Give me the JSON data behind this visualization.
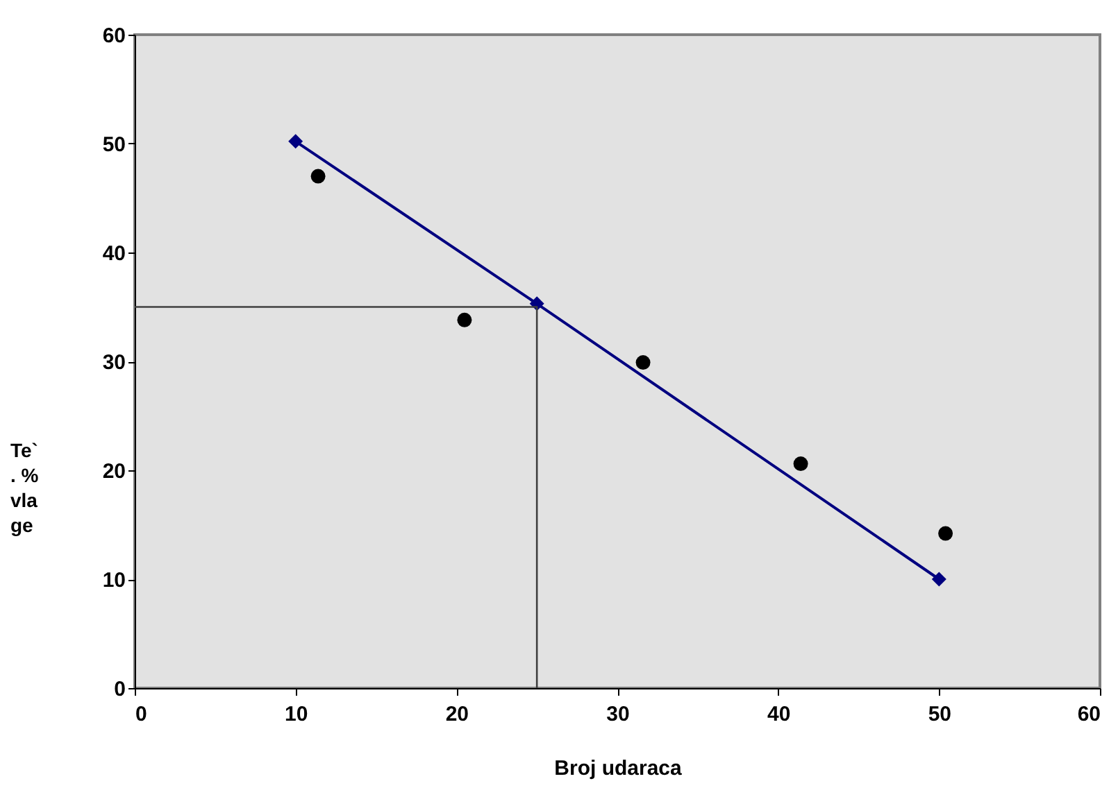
{
  "chart_data": {
    "type": "scatter",
    "xlabel": "Broj udaraca",
    "ylabel": "Te`. %vlage",
    "xlim": [
      0,
      60
    ],
    "xticks": [
      0,
      10,
      20,
      30,
      40,
      50,
      60
    ],
    "ylim": [
      0,
      60
    ],
    "yticks": [
      0,
      10,
      20,
      30,
      40,
      50,
      60
    ],
    "grid": false,
    "series": [
      {
        "marker": "circle",
        "color": "#000000",
        "x": [
          11.4,
          20.5,
          31.6,
          41.4,
          50.4
        ],
        "values": [
          47.0,
          33.8,
          29.9,
          20.6,
          14.2
        ]
      },
      {
        "type": "line",
        "marker": "diamond",
        "color": "#000080",
        "x": [
          10,
          25,
          50
        ],
        "values": [
          50.2,
          35.3,
          10.0
        ]
      },
      {
        "type": "line",
        "marker": "none",
        "color": "#404040",
        "x": [
          0,
          25,
          25
        ],
        "values": [
          35,
          35,
          0
        ]
      }
    ]
  }
}
